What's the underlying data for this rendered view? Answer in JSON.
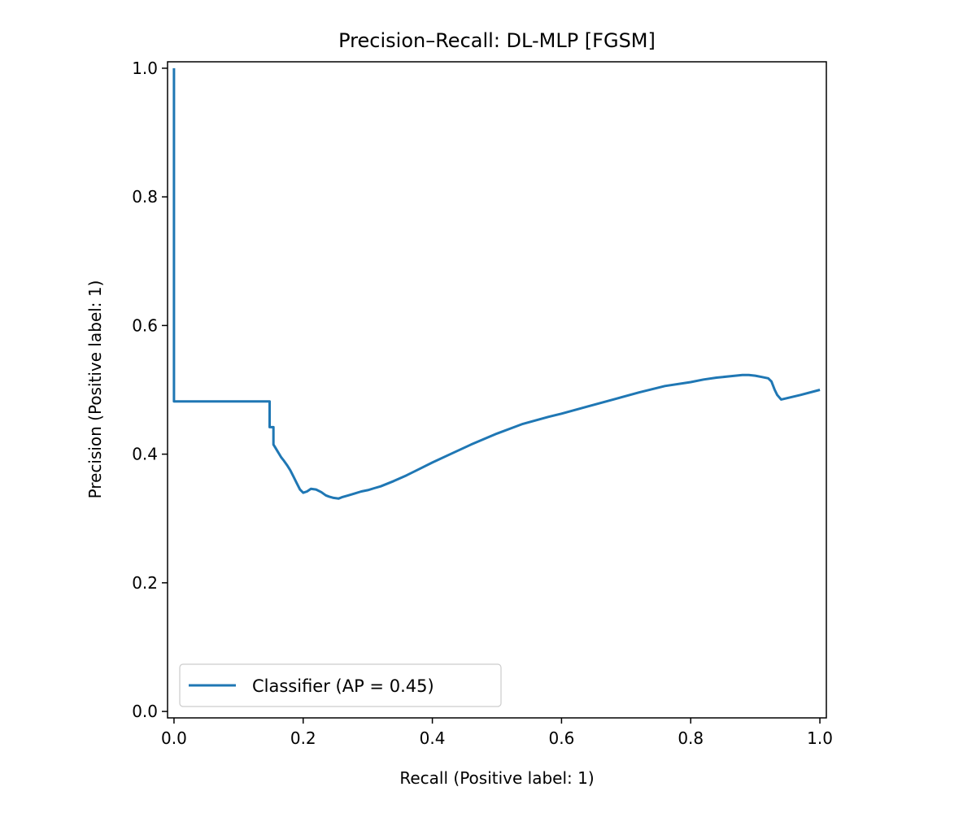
{
  "chart_data": {
    "type": "line",
    "title": "Precision–Recall: DL-MLP [FGSM]",
    "xlabel": "Recall (Positive label: 1)",
    "ylabel": "Precision (Positive label: 1)",
    "xlim": [
      -0.01,
      1.01
    ],
    "ylim": [
      -0.01,
      1.01
    ],
    "xticks": [
      {
        "value": 0.0,
        "label": "0.0"
      },
      {
        "value": 0.2,
        "label": "0.2"
      },
      {
        "value": 0.4,
        "label": "0.4"
      },
      {
        "value": 0.6,
        "label": "0.6"
      },
      {
        "value": 0.8,
        "label": "0.8"
      },
      {
        "value": 1.0,
        "label": "1.0"
      }
    ],
    "yticks": [
      {
        "value": 0.0,
        "label": "0.0"
      },
      {
        "value": 0.2,
        "label": "0.2"
      },
      {
        "value": 0.4,
        "label": "0.4"
      },
      {
        "value": 0.6,
        "label": "0.6"
      },
      {
        "value": 0.8,
        "label": "0.8"
      },
      {
        "value": 1.0,
        "label": "1.0"
      }
    ],
    "grid": false,
    "legend": {
      "position": "lower-left",
      "entries": [
        "Classifier (AP = 0.45)"
      ]
    },
    "series": [
      {
        "name": "Classifier (AP = 0.45)",
        "color": "#1f77b4",
        "x": [
          0.0,
          0.0,
          0.0,
          0.148,
          0.148,
          0.148,
          0.154,
          0.154,
          0.157,
          0.16,
          0.163,
          0.166,
          0.17,
          0.175,
          0.18,
          0.185,
          0.19,
          0.195,
          0.2,
          0.206,
          0.212,
          0.22,
          0.228,
          0.235,
          0.24,
          0.247,
          0.255,
          0.26,
          0.27,
          0.28,
          0.29,
          0.3,
          0.31,
          0.32,
          0.34,
          0.36,
          0.38,
          0.4,
          0.43,
          0.46,
          0.5,
          0.54,
          0.58,
          0.6,
          0.64,
          0.68,
          0.72,
          0.76,
          0.8,
          0.82,
          0.84,
          0.86,
          0.88,
          0.89,
          0.9,
          0.91,
          0.92,
          0.925,
          0.93,
          0.934,
          0.94,
          0.97,
          1.0
        ],
        "y": [
          1.0,
          0.482,
          0.482,
          0.482,
          0.442,
          0.442,
          0.442,
          0.415,
          0.41,
          0.405,
          0.4,
          0.395,
          0.39,
          0.383,
          0.375,
          0.365,
          0.355,
          0.345,
          0.34,
          0.342,
          0.346,
          0.345,
          0.341,
          0.336,
          0.334,
          0.332,
          0.331,
          0.333,
          0.336,
          0.339,
          0.342,
          0.344,
          0.347,
          0.35,
          0.358,
          0.367,
          0.377,
          0.387,
          0.401,
          0.415,
          0.432,
          0.447,
          0.458,
          0.463,
          0.474,
          0.485,
          0.496,
          0.506,
          0.512,
          0.516,
          0.519,
          0.521,
          0.523,
          0.523,
          0.522,
          0.52,
          0.518,
          0.513,
          0.5,
          0.492,
          0.485,
          0.492,
          0.5
        ]
      }
    ]
  }
}
